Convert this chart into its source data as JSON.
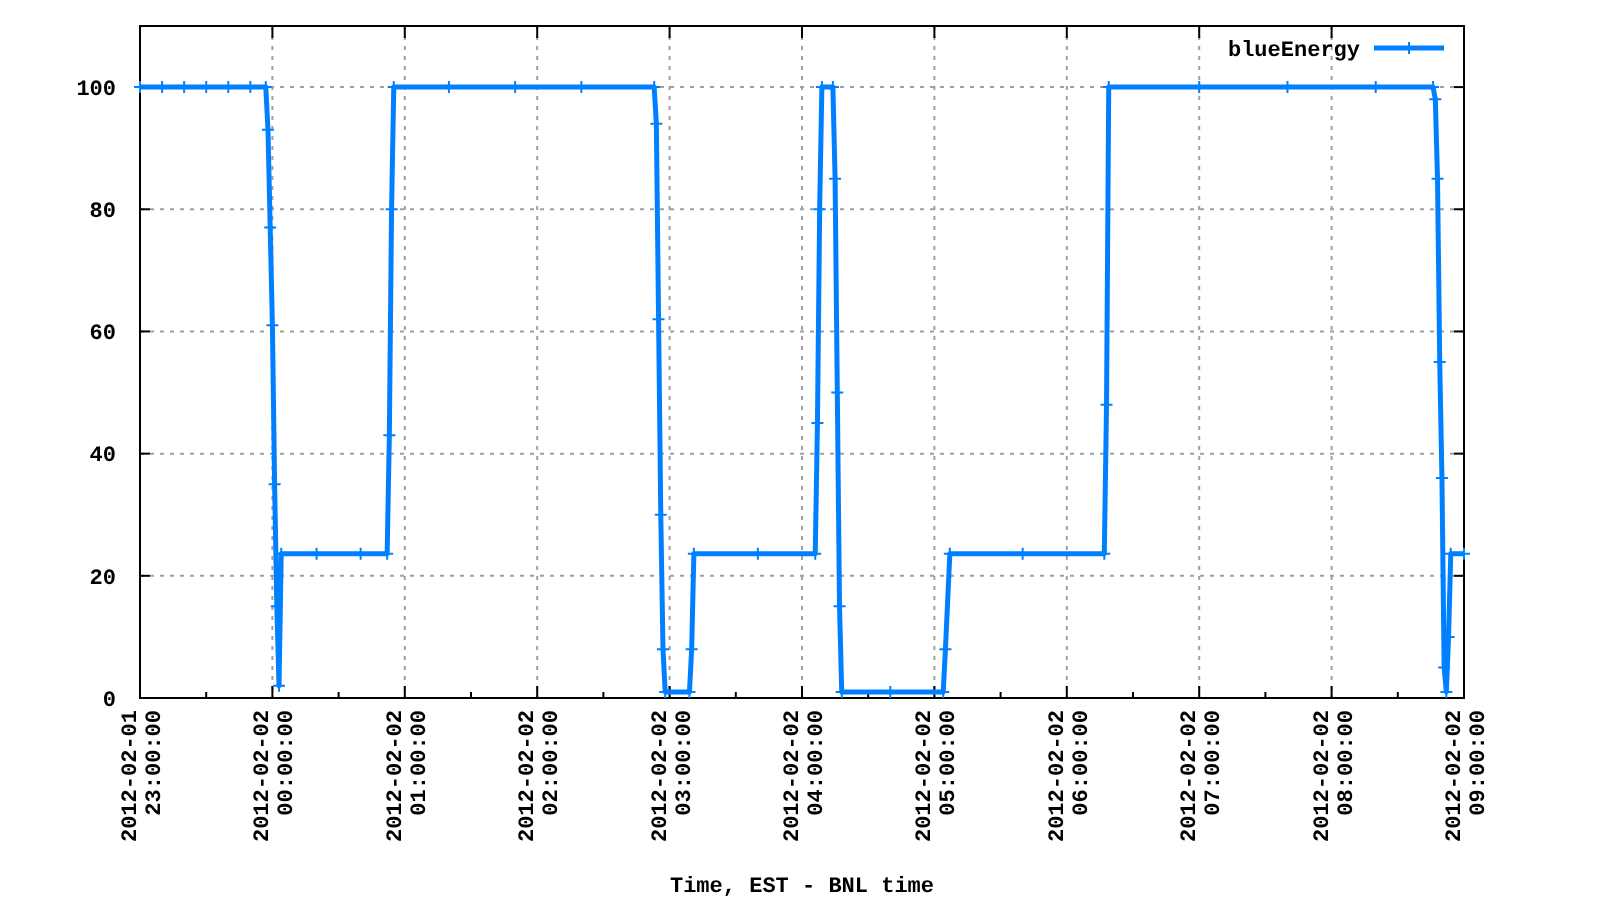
{
  "chart_data": {
    "type": "line",
    "xlabel": "Time, EST - BNL time",
    "x": [
      "2012-02-01T23:00",
      "2012-02-01T23:10",
      "2012-02-01T23:20",
      "2012-02-01T23:30",
      "2012-02-01T23:40",
      "2012-02-01T23:50",
      "2012-02-01T23:57",
      "2012-02-01T23:58",
      "2012-02-01T23:59",
      "2012-02-02T00:00",
      "2012-02-02T00:01",
      "2012-02-02T00:02",
      "2012-02-02T00:03",
      "2012-02-02T00:04",
      "2012-02-02T00:20",
      "2012-02-02T00:40",
      "2012-02-02T00:52",
      "2012-02-02T00:53",
      "2012-02-02T00:54",
      "2012-02-02T00:55",
      "2012-02-02T01:20",
      "2012-02-02T01:50",
      "2012-02-02T02:20",
      "2012-02-02T02:53",
      "2012-02-02T02:54",
      "2012-02-02T02:55",
      "2012-02-02T02:56",
      "2012-02-02T02:57",
      "2012-02-02T02:58",
      "2012-02-02T03:09",
      "2012-02-02T03:10",
      "2012-02-02T03:11",
      "2012-02-02T03:40",
      "2012-02-02T04:06",
      "2012-02-02T04:07",
      "2012-02-02T04:08",
      "2012-02-02T04:09",
      "2012-02-02T04:14",
      "2012-02-02T04:15",
      "2012-02-02T04:16",
      "2012-02-02T04:17",
      "2012-02-02T04:18",
      "2012-02-02T04:40",
      "2012-02-02T05:04",
      "2012-02-02T05:05",
      "2012-02-02T05:07",
      "2012-02-02T05:40",
      "2012-02-02T06:17",
      "2012-02-02T06:18",
      "2012-02-02T06:19",
      "2012-02-02T07:00",
      "2012-02-02T07:40",
      "2012-02-02T08:20",
      "2012-02-02T08:46",
      "2012-02-02T08:47",
      "2012-02-02T08:48",
      "2012-02-02T08:49",
      "2012-02-02T08:50",
      "2012-02-02T08:51",
      "2012-02-02T08:52",
      "2012-02-02T08:53",
      "2012-02-02T08:54",
      "2012-02-02T09:00"
    ],
    "series": [
      {
        "name": "blueEnergy",
        "color": "#0080ff",
        "values": [
          100,
          100,
          100,
          100,
          100,
          100,
          100,
          93,
          77,
          61,
          35,
          15,
          2,
          23.6,
          23.6,
          23.6,
          23.6,
          43,
          80,
          100,
          100,
          100,
          100,
          100,
          94,
          62,
          30,
          8,
          1,
          1,
          8,
          23.6,
          23.6,
          23.6,
          45,
          80,
          100,
          100,
          85,
          50,
          15,
          1,
          1,
          1,
          8,
          23.6,
          23.6,
          23.6,
          48,
          100,
          100,
          100,
          100,
          100,
          98,
          85,
          55,
          36,
          5,
          1,
          10,
          23.6,
          23.6
        ]
      }
    ],
    "xlim": [
      "2012-02-01T23:00",
      "2012-02-02T09:00"
    ],
    "xticks": [
      {
        "value": "2012-02-01T23:00",
        "label": "2012-02-01\n23:00:00"
      },
      {
        "value": "2012-02-02T00:00",
        "label": "2012-02-02\n00:00:00"
      },
      {
        "value": "2012-02-02T01:00",
        "label": "2012-02-02\n01:00:00"
      },
      {
        "value": "2012-02-02T02:00",
        "label": "2012-02-02\n02:00:00"
      },
      {
        "value": "2012-02-02T03:00",
        "label": "2012-02-02\n03:00:00"
      },
      {
        "value": "2012-02-02T04:00",
        "label": "2012-02-02\n04:00:00"
      },
      {
        "value": "2012-02-02T05:00",
        "label": "2012-02-02\n05:00:00"
      },
      {
        "value": "2012-02-02T06:00",
        "label": "2012-02-02\n06:00:00"
      },
      {
        "value": "2012-02-02T07:00",
        "label": "2012-02-02\n07:00:00"
      },
      {
        "value": "2012-02-02T08:00",
        "label": "2012-02-02\n08:00:00"
      },
      {
        "value": "2012-02-02T09:00",
        "label": "2012-02-02\n09:00:00"
      }
    ],
    "ylim": [
      0,
      110
    ],
    "yticks": [
      0,
      20,
      40,
      60,
      80,
      100
    ],
    "grid": true,
    "legend": "top right",
    "marker": "cross",
    "line_style": "solid"
  }
}
